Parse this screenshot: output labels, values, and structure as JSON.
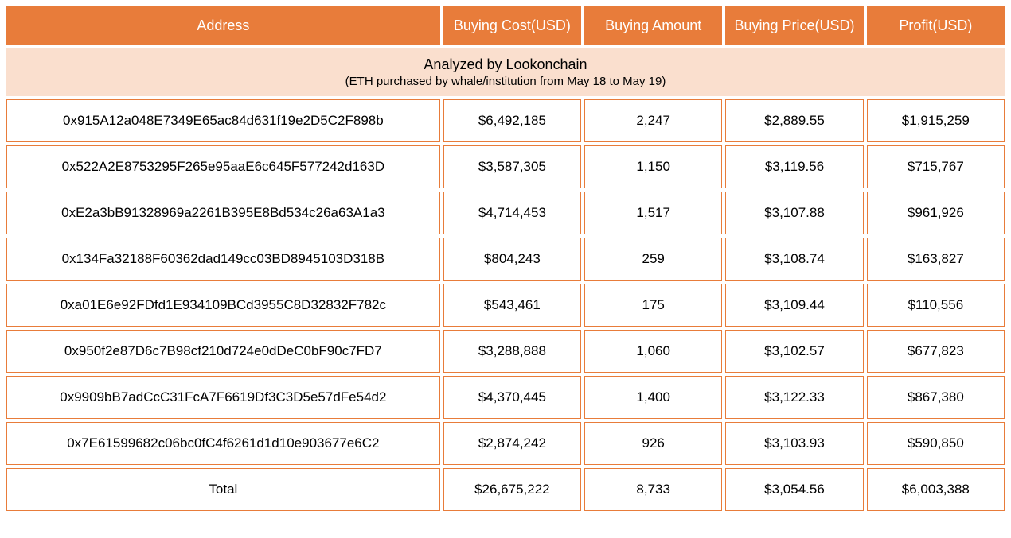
{
  "table": {
    "columns": [
      {
        "key": "address",
        "label": "Address"
      },
      {
        "key": "cost",
        "label": "Buying Cost(USD)"
      },
      {
        "key": "amount",
        "label": "Buying Amount"
      },
      {
        "key": "price",
        "label": "Buying Price(USD)"
      },
      {
        "key": "profit",
        "label": "Profit(USD)"
      }
    ],
    "subtitle_main": "Analyzed by Lookonchain",
    "subtitle_sub": "(ETH purchased by whale/institution from May 18 to May 19)",
    "rows": [
      {
        "address": "0x915A12a048E7349E65ac84d631f19e2D5C2F898b",
        "cost": "$6,492,185",
        "amount": "2,247",
        "price": "$2,889.55",
        "profit": "$1,915,259"
      },
      {
        "address": "0x522A2E8753295F265e95aaE6c645F577242d163D",
        "cost": "$3,587,305",
        "amount": "1,150",
        "price": "$3,119.56",
        "profit": "$715,767"
      },
      {
        "address": "0xE2a3bB91328969a2261B395E8Bd534c26a63A1a3",
        "cost": "$4,714,453",
        "amount": "1,517",
        "price": "$3,107.88",
        "profit": "$961,926"
      },
      {
        "address": "0x134Fa32188F60362dad149cc03BD8945103D318B",
        "cost": "$804,243",
        "amount": "259",
        "price": "$3,108.74",
        "profit": "$163,827"
      },
      {
        "address": "0xa01E6e92FDfd1E934109BCd3955C8D32832F782c",
        "cost": "$543,461",
        "amount": "175",
        "price": "$3,109.44",
        "profit": "$110,556"
      },
      {
        "address": "0x950f2e87D6c7B98cf210d724e0dDeC0bF90c7FD7",
        "cost": "$3,288,888",
        "amount": "1,060",
        "price": "$3,102.57",
        "profit": "$677,823"
      },
      {
        "address": "0x9909bB7adCcC31FcA7F6619Df3C3D5e57dFe54d2",
        "cost": "$4,370,445",
        "amount": "1,400",
        "price": "$3,122.33",
        "profit": "$867,380"
      },
      {
        "address": "0x7E61599682c06bc0fC4f6261d1d10e903677e6C2",
        "cost": "$2,874,242",
        "amount": "926",
        "price": "$3,103.93",
        "profit": "$590,850"
      }
    ],
    "total_row": {
      "address": "Total",
      "cost": "$26,675,222",
      "amount": "8,733",
      "price": "$3,054.56",
      "profit": "$6,003,388"
    },
    "styling": {
      "header_bg": "#e87c3a",
      "header_text_color": "#ffffff",
      "subtitle_bg": "#fadfce",
      "cell_border_color": "#e87c3a",
      "cell_bg": "#ffffff",
      "cell_text_color": "#000000",
      "header_font_size": 18,
      "cell_font_size": 17,
      "subtitle_main_font_size": 18,
      "subtitle_sub_font_size": 15,
      "cell_spacing": 4
    }
  }
}
